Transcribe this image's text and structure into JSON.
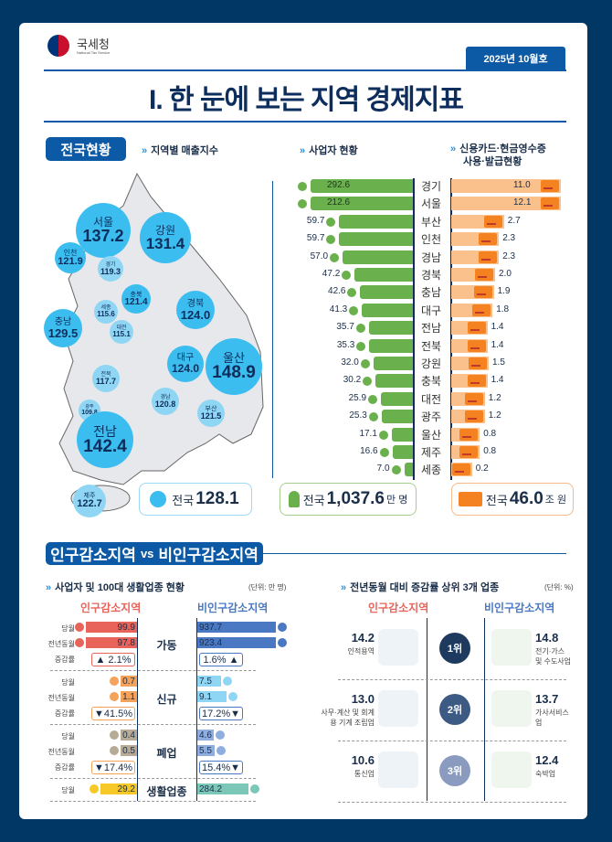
{
  "header": {
    "org": "국세청",
    "org_en": "National Tax Service",
    "issue": "2025년 10월호",
    "title": "I. 한 눈에 보는 지역 경제지표"
  },
  "section1": {
    "tag": "전국현황",
    "sub_sales": "지역별 매출지수",
    "sub_biz": "사업자 현황",
    "sub_card_l1": "신용카드·현금영수증",
    "sub_card_l2": "사용·발급현황"
  },
  "colors": {
    "navy": "#013764",
    "blue": "#0c5aa6",
    "bubble": "#3bbdf0",
    "green": "#6ab04c",
    "orange": "#f58220",
    "peach": "#fbc18c",
    "red": "#e8635a",
    "slate": "#4a78c2"
  },
  "chart_data": [
    {
      "type": "bubble-map",
      "title": "지역별 매출지수",
      "regions": [
        {
          "name": "서울",
          "value": 137.2
        },
        {
          "name": "강원",
          "value": 131.4
        },
        {
          "name": "인천",
          "value": 121.9
        },
        {
          "name": "경기",
          "value": 119.3
        },
        {
          "name": "충북",
          "value": 121.4
        },
        {
          "name": "세종",
          "value": 115.6
        },
        {
          "name": "충남",
          "value": 129.5
        },
        {
          "name": "대전",
          "value": 115.1
        },
        {
          "name": "경북",
          "value": 124.0
        },
        {
          "name": "대구",
          "value": 124.0
        },
        {
          "name": "울산",
          "value": 148.9
        },
        {
          "name": "전북",
          "value": 117.7
        },
        {
          "name": "경남",
          "value": 120.8
        },
        {
          "name": "부산",
          "value": 121.5
        },
        {
          "name": "광주",
          "value": 109.8
        },
        {
          "name": "전남",
          "value": 142.4
        },
        {
          "name": "제주",
          "value": 122.7
        }
      ],
      "total_label": "전국",
      "total": 128.1
    },
    {
      "type": "bar",
      "title": "사업자 현황",
      "categories": [
        "경기",
        "서울",
        "부산",
        "인천",
        "경남",
        "경북",
        "충남",
        "대구",
        "전남",
        "전북",
        "강원",
        "충북",
        "대전",
        "광주",
        "울산",
        "제주",
        "세종"
      ],
      "values": [
        292.6,
        212.6,
        59.7,
        59.7,
        57.0,
        47.2,
        42.6,
        41.3,
        35.7,
        35.3,
        32.0,
        30.2,
        25.9,
        25.3,
        17.1,
        16.6,
        7.0
      ],
      "total_label": "전국",
      "total": "1,037.6",
      "unit": "만 명"
    },
    {
      "type": "bar",
      "title": "신용카드·현금영수증 사용·발급현황",
      "categories": [
        "경기",
        "서울",
        "부산",
        "인천",
        "경남",
        "경북",
        "충남",
        "대구",
        "전남",
        "전북",
        "강원",
        "충북",
        "대전",
        "광주",
        "울산",
        "제주",
        "세종"
      ],
      "values": [
        11.0,
        12.1,
        2.7,
        2.3,
        2.3,
        2.0,
        1.9,
        1.8,
        1.4,
        1.4,
        1.5,
        1.4,
        1.2,
        1.2,
        0.8,
        0.8,
        0.2
      ],
      "total_label": "전국",
      "total": "46.0",
      "unit": "조 원"
    },
    {
      "type": "table",
      "title": "사업자 및 100대 생활업종 현황",
      "unit": "(단위: 만 명)",
      "col_left": "인구감소지역",
      "col_right": "비인구감소지역",
      "groups": [
        {
          "name": "가동",
          "rows": [
            {
              "label": "당월",
              "left": "99.9",
              "right": "937.7"
            },
            {
              "label": "전년동월",
              "left": "97.8",
              "right": "923.4"
            },
            {
              "label": "증감률",
              "left": "▲ 2.1%",
              "right": "1.6% ▲"
            }
          ]
        },
        {
          "name": "신규",
          "rows": [
            {
              "label": "당월",
              "left": "0.7",
              "right": "7.5"
            },
            {
              "label": "전년동월",
              "left": "1.1",
              "right": "9.1"
            },
            {
              "label": "증감률",
              "left": "▼41.5%",
              "right": "17.2%▼"
            }
          ]
        },
        {
          "name": "폐업",
          "rows": [
            {
              "label": "당월",
              "left": "0.4",
              "right": "4.6"
            },
            {
              "label": "전년동월",
              "left": "0.5",
              "right": "5.5"
            },
            {
              "label": "증감률",
              "left": "▼17.4%",
              "right": "15.4%▼"
            }
          ]
        },
        {
          "name": "생활업종",
          "rows": [
            {
              "label": "당월",
              "left": "29.2",
              "right": "284.2"
            }
          ]
        }
      ]
    },
    {
      "type": "table",
      "title": "전년동월 대비 증감률 상위 3개 업종",
      "unit": "(단위: %)",
      "col_left": "인구감소지역",
      "col_right": "비인구감소지역",
      "ranks": [
        {
          "rank": "1위",
          "left_value": "14.2",
          "left_name": "인적용역",
          "right_value": "14.8",
          "right_name": "전기·가스 및 수도사업"
        },
        {
          "rank": "2위",
          "left_value": "13.0",
          "left_name": "사무·계산 및 회계용 기계 조립업",
          "right_value": "13.7",
          "right_name": "가사서비스업"
        },
        {
          "rank": "3위",
          "left_value": "10.6",
          "left_name": "통신업",
          "right_value": "12.4",
          "right_name": "숙박업"
        }
      ]
    }
  ],
  "section2": {
    "tag_a": "인구감소지역",
    "tag_vs": "vs",
    "tag_b": "비인구감소지역"
  }
}
